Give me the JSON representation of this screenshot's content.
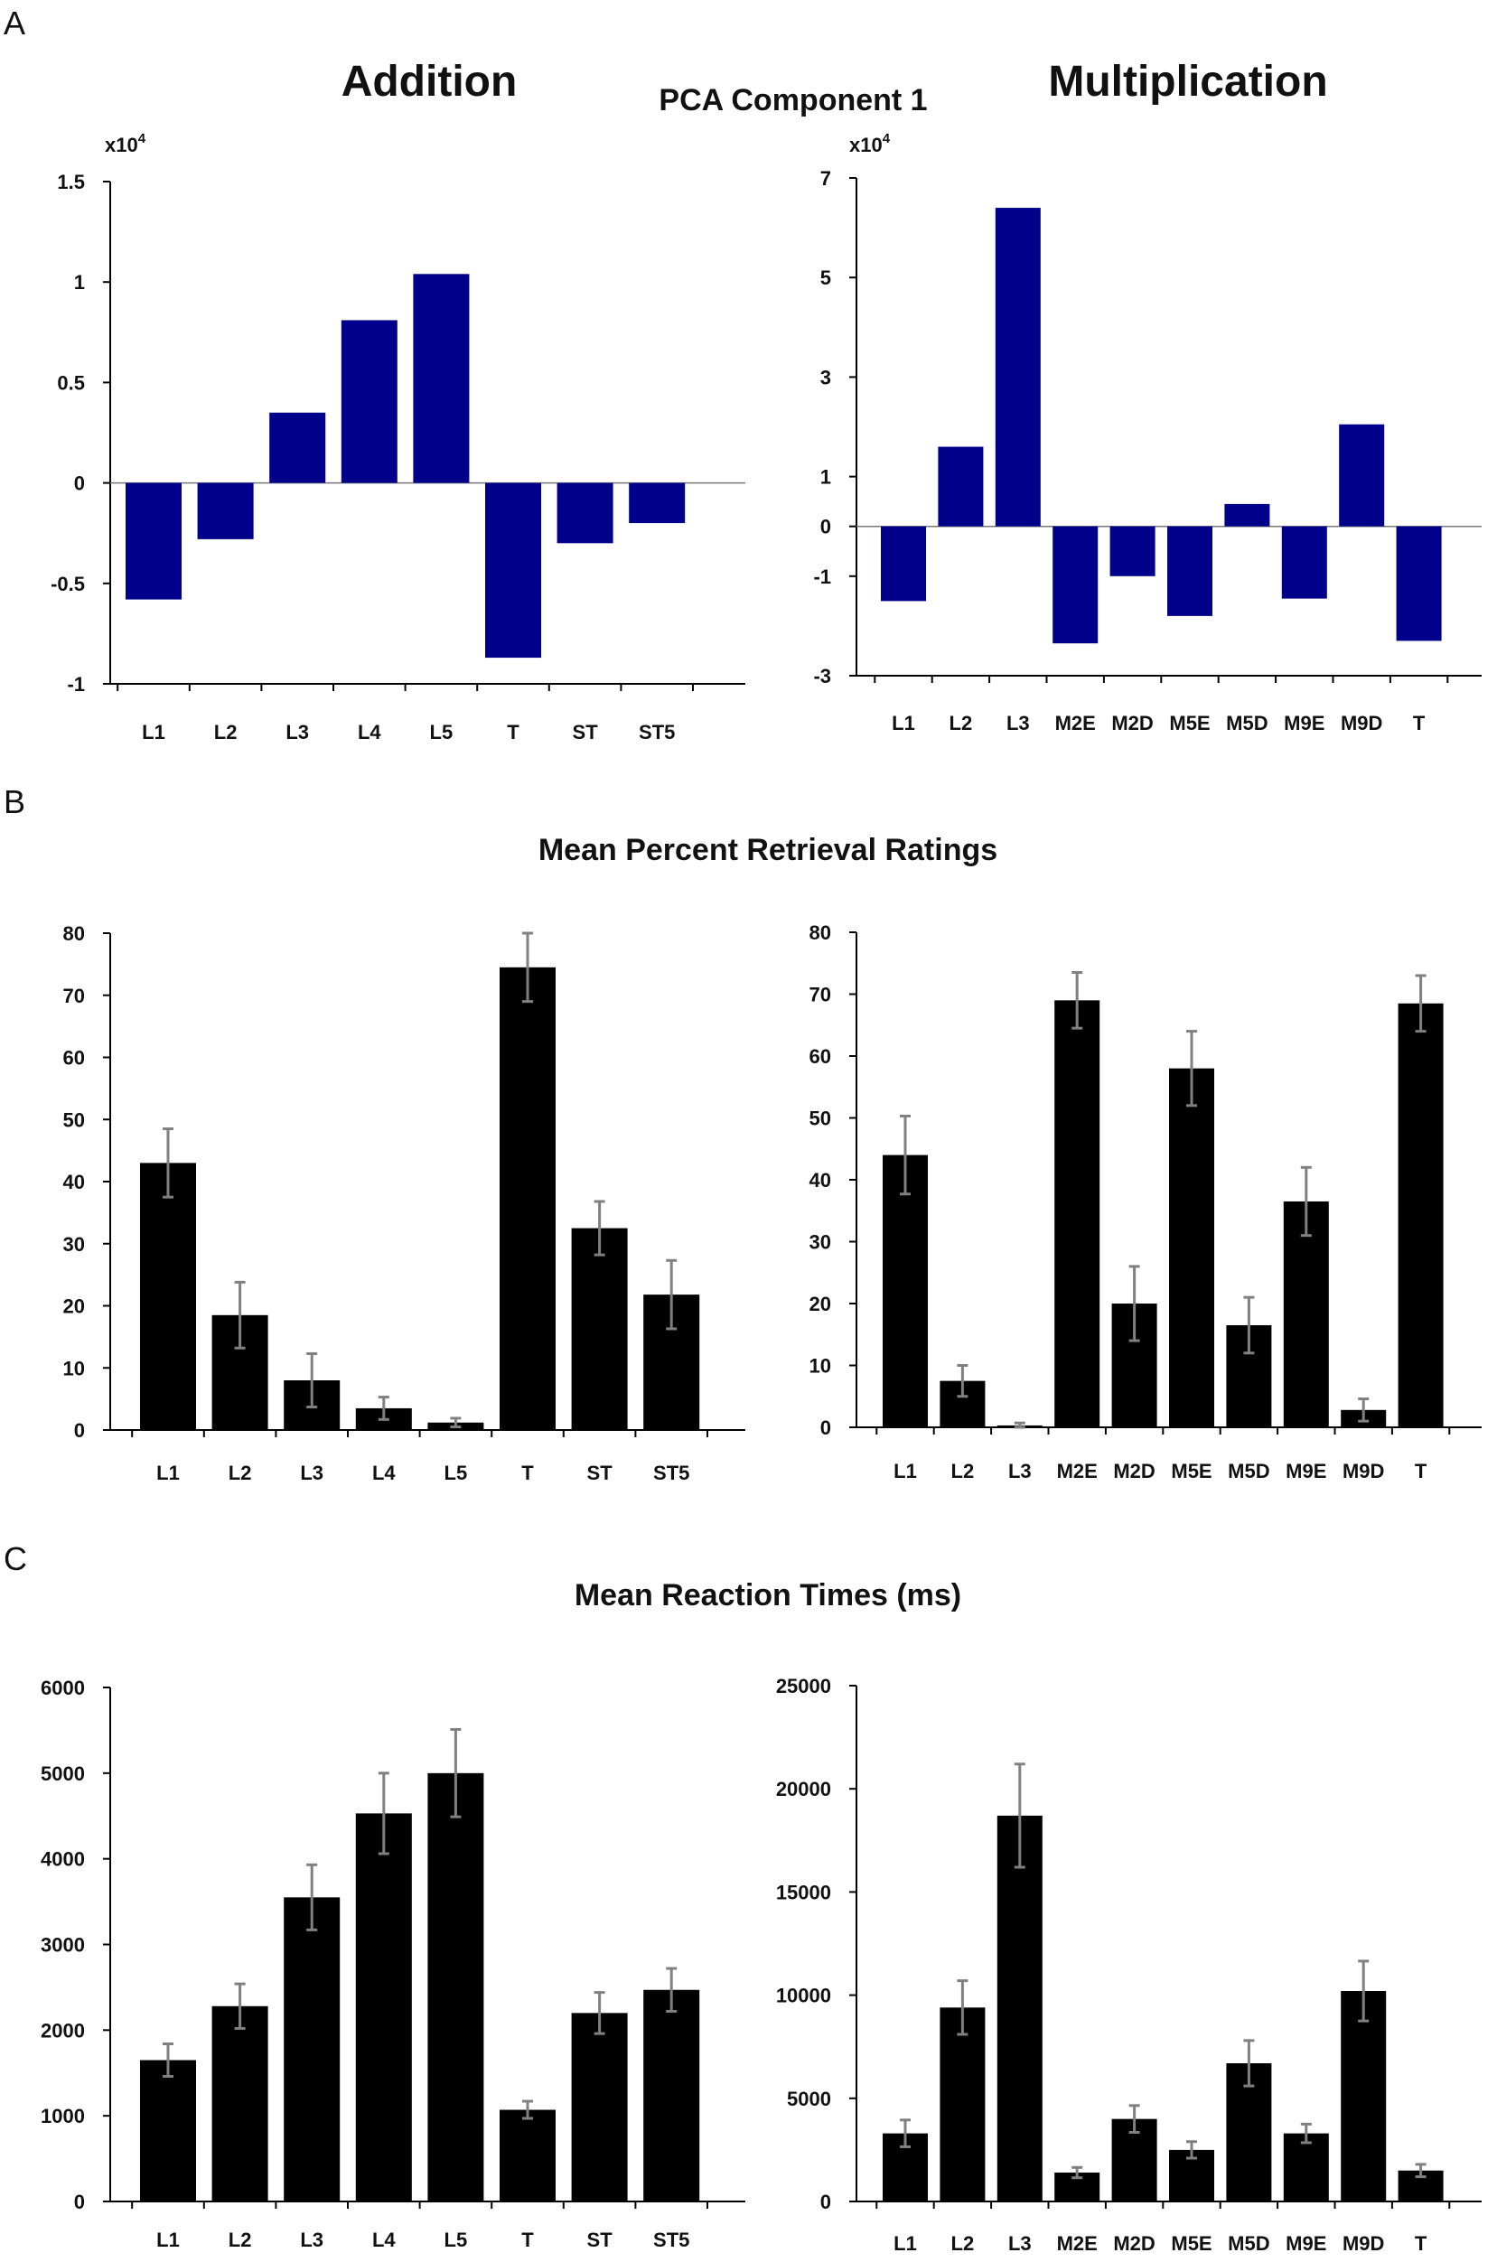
{
  "panels": [
    {
      "letter": "A",
      "title": "PCA Component 1",
      "left_title": "Addition",
      "right_title": "Multiplication"
    },
    {
      "letter": "B",
      "title": "Mean Percent Retrieval Ratings"
    },
    {
      "letter": "C",
      "title": "Mean Reaction Times (ms)"
    }
  ],
  "colors": {
    "pca_bar": "#00008b",
    "bar": "#000000",
    "error": "#808080",
    "axis": "#000000"
  },
  "chart_data": [
    {
      "id": "A-add",
      "type": "bar",
      "title": "Addition",
      "multiplier": "x10^4",
      "multiplier_base": "x10",
      "multiplier_exp": "4",
      "categories": [
        "L1",
        "L2",
        "L3",
        "L4",
        "L5",
        "T",
        "ST",
        "ST5"
      ],
      "values": [
        -0.58,
        -0.28,
        0.35,
        0.81,
        1.04,
        -0.87,
        -0.3,
        -0.2
      ],
      "ylim": [
        -1,
        1.5
      ],
      "ytick_labels": [
        {
          "v": 1.5,
          "t": "1.5"
        },
        {
          "v": 1,
          "t": "1"
        },
        {
          "v": 0.5,
          "t": "0.5"
        },
        {
          "v": 0,
          "t": "0"
        },
        {
          "v": -0.5,
          "t": "-0.5"
        },
        {
          "v": -1,
          "t": "-1"
        }
      ],
      "xlabel": "",
      "ylabel": ""
    },
    {
      "id": "A-mult",
      "type": "bar",
      "title": "Multiplication",
      "multiplier": "x10^4",
      "multiplier_base": "x10",
      "multiplier_exp": "4",
      "categories": [
        "L1",
        "L2",
        "L3",
        "M2E",
        "M2D",
        "M5E",
        "M5D",
        "M9E",
        "M9D",
        "T"
      ],
      "values": [
        -1.5,
        1.6,
        6.4,
        -2.35,
        -1.0,
        -1.8,
        0.45,
        -1.45,
        2.05,
        -2.3
      ],
      "ylim": [
        -3,
        7
      ],
      "ytick_labels": [
        {
          "v": 7,
          "t": "7"
        },
        {
          "v": 5,
          "t": "5"
        },
        {
          "v": 3,
          "t": "3"
        },
        {
          "v": 1,
          "t": "1"
        },
        {
          "v": 0,
          "t": "0"
        },
        {
          "v": -1,
          "t": "-1"
        },
        {
          "v": -3,
          "t": "-3"
        }
      ],
      "xlabel": "",
      "ylabel": ""
    },
    {
      "id": "B-add",
      "type": "bar",
      "title": "Mean Percent Retrieval Ratings",
      "categories": [
        "L1",
        "L2",
        "L3",
        "L4",
        "L5",
        "T",
        "ST",
        "ST5"
      ],
      "values": [
        43,
        18.5,
        8,
        3.5,
        1.2,
        74.5,
        32.5,
        21.8
      ],
      "errors": [
        5.5,
        5.3,
        4.3,
        1.8,
        0.7,
        5.5,
        4.3,
        5.5
      ],
      "ylim": [
        0,
        80
      ],
      "ytick_labels": [
        {
          "v": 80,
          "t": "80"
        },
        {
          "v": 70,
          "t": "70"
        },
        {
          "v": 60,
          "t": "60"
        },
        {
          "v": 50,
          "t": "50"
        },
        {
          "v": 40,
          "t": "40"
        },
        {
          "v": 30,
          "t": "30"
        },
        {
          "v": 20,
          "t": "20"
        },
        {
          "v": 10,
          "t": "10"
        },
        {
          "v": 0,
          "t": "0"
        }
      ],
      "xlabel": "",
      "ylabel": ""
    },
    {
      "id": "B-mult",
      "type": "bar",
      "title": "Mean Percent Retrieval Ratings",
      "categories": [
        "L1",
        "L2",
        "L3",
        "M2E",
        "M2D",
        "M5E",
        "M5D",
        "M9E",
        "M9D",
        "T"
      ],
      "values": [
        44,
        7.5,
        0.3,
        69,
        20,
        58,
        16.5,
        36.5,
        2.8,
        68.5
      ],
      "errors": [
        6.3,
        2.5,
        0.4,
        4.5,
        6,
        6,
        4.5,
        5.5,
        1.8,
        4.5
      ],
      "ylim": [
        0,
        80
      ],
      "ytick_labels": [
        {
          "v": 80,
          "t": "80"
        },
        {
          "v": 70,
          "t": "70"
        },
        {
          "v": 60,
          "t": "60"
        },
        {
          "v": 50,
          "t": "50"
        },
        {
          "v": 40,
          "t": "40"
        },
        {
          "v": 30,
          "t": "30"
        },
        {
          "v": 20,
          "t": "20"
        },
        {
          "v": 10,
          "t": "10"
        },
        {
          "v": 0,
          "t": "0"
        }
      ],
      "xlabel": "",
      "ylabel": ""
    },
    {
      "id": "C-add",
      "type": "bar",
      "title": "Mean Reaction Times (ms)",
      "categories": [
        "L1",
        "L2",
        "L3",
        "L4",
        "L5",
        "T",
        "ST",
        "ST5"
      ],
      "values": [
        1650,
        2280,
        3550,
        4530,
        5000,
        1070,
        2200,
        2470
      ],
      "errors": [
        190,
        260,
        380,
        470,
        510,
        100,
        240,
        250
      ],
      "ylim": [
        0,
        6000
      ],
      "ytick_labels": [
        {
          "v": 6000,
          "t": "6000"
        },
        {
          "v": 5000,
          "t": "5000"
        },
        {
          "v": 4000,
          "t": "4000"
        },
        {
          "v": 3000,
          "t": "3000"
        },
        {
          "v": 2000,
          "t": "2000"
        },
        {
          "v": 1000,
          "t": "1000"
        },
        {
          "v": 0,
          "t": "0"
        }
      ],
      "xlabel": "",
      "ylabel": ""
    },
    {
      "id": "C-mult",
      "type": "bar",
      "title": "Mean Reaction Times (ms)",
      "categories": [
        "L1",
        "L2",
        "L3",
        "M2E",
        "M2D",
        "M5E",
        "M5D",
        "M9E",
        "M9D",
        "T"
      ],
      "values": [
        3300,
        9400,
        18700,
        1400,
        4000,
        2500,
        6700,
        3300,
        10200,
        1500
      ],
      "errors": [
        650,
        1300,
        2500,
        250,
        650,
        400,
        1100,
        450,
        1450,
        300
      ],
      "ylim": [
        0,
        25000
      ],
      "ytick_labels": [
        {
          "v": 25000,
          "t": "25000"
        },
        {
          "v": 20000,
          "t": "20000"
        },
        {
          "v": 15000,
          "t": "15000"
        },
        {
          "v": 10000,
          "t": "10000"
        },
        {
          "v": 5000,
          "t": "5000"
        },
        {
          "v": 0,
          "t": "0"
        }
      ],
      "xlabel": "",
      "ylabel": ""
    }
  ]
}
